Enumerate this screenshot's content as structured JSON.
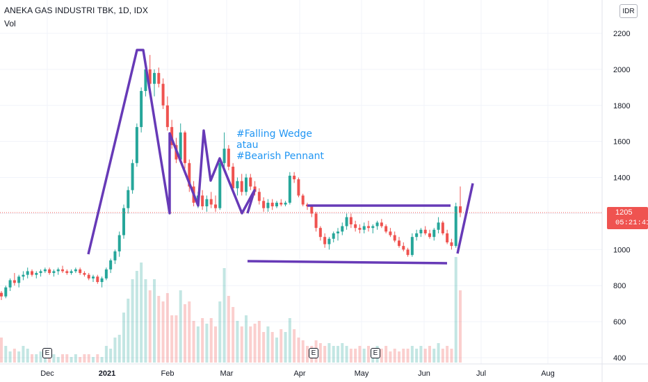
{
  "header": {
    "title": "ANEKA GAS INDUSTRI TBK, 1D, IDX",
    "indicator": "Vol"
  },
  "currency_button": "IDR",
  "price_tag": {
    "price": "1205",
    "countdown": "05:21:41"
  },
  "annotation": {
    "lines": [
      "#Falling Wedge",
      "atau",
      "#Bearish Pennant"
    ]
  },
  "event_markers": [
    "E",
    "E",
    "E"
  ],
  "colors": {
    "up": "#26a69a",
    "down": "#ef5350",
    "drawing": "#673ab7",
    "annotation": "#2196f3",
    "price_line": "#ef5350"
  },
  "chart_data": {
    "type": "candlestick",
    "symbol": "ANEKA GAS INDUSTRI TBK",
    "interval": "1D",
    "exchange": "IDX",
    "y_ticks": [
      "2200",
      "2000",
      "1800",
      "1600",
      "1400",
      "1200",
      "1000",
      "800",
      "600",
      "400"
    ],
    "x_ticks": [
      "Dec",
      "2021",
      "Feb",
      "Mar",
      "Apr",
      "May",
      "Jun",
      "Jul",
      "Aug"
    ],
    "ylim": [
      370,
      2240
    ],
    "last_price": 1205,
    "ohlc": [
      [
        760,
        770,
        720,
        740
      ],
      [
        740,
        800,
        730,
        790
      ],
      [
        790,
        840,
        770,
        830
      ],
      [
        830,
        870,
        800,
        815
      ],
      [
        815,
        860,
        790,
        850
      ],
      [
        850,
        880,
        830,
        860
      ],
      [
        860,
        900,
        840,
        880
      ],
      [
        880,
        890,
        850,
        860
      ],
      [
        860,
        880,
        840,
        870
      ],
      [
        870,
        890,
        850,
        880
      ],
      [
        880,
        900,
        870,
        890
      ],
      [
        890,
        900,
        860,
        870
      ],
      [
        870,
        890,
        850,
        880
      ],
      [
        880,
        900,
        860,
        890
      ],
      [
        890,
        910,
        870,
        880
      ],
      [
        880,
        890,
        860,
        870
      ],
      [
        870,
        890,
        860,
        880
      ],
      [
        880,
        900,
        870,
        890
      ],
      [
        890,
        900,
        860,
        870
      ],
      [
        870,
        880,
        850,
        860
      ],
      [
        860,
        870,
        830,
        840
      ],
      [
        840,
        860,
        820,
        850
      ],
      [
        850,
        860,
        810,
        820
      ],
      [
        820,
        850,
        790,
        840
      ],
      [
        840,
        900,
        830,
        890
      ],
      [
        890,
        950,
        870,
        940
      ],
      [
        940,
        1000,
        920,
        990
      ],
      [
        990,
        1100,
        960,
        1080
      ],
      [
        1080,
        1250,
        1060,
        1230
      ],
      [
        1230,
        1350,
        1200,
        1330
      ],
      [
        1330,
        1500,
        1310,
        1480
      ],
      [
        1480,
        1700,
        1460,
        1680
      ],
      [
        1680,
        1900,
        1650,
        1880
      ],
      [
        1880,
        2050,
        1850,
        2000
      ],
      [
        2000,
        2080,
        1900,
        1920
      ],
      [
        1920,
        2000,
        1850,
        1980
      ],
      [
        1980,
        2010,
        1900,
        1920
      ],
      [
        1920,
        1950,
        1780,
        1800
      ],
      [
        1800,
        1850,
        1660,
        1680
      ],
      [
        1680,
        1720,
        1560,
        1580
      ],
      [
        1580,
        1620,
        1480,
        1500
      ],
      [
        1500,
        1700,
        1480,
        1650
      ],
      [
        1650,
        1660,
        1450,
        1480
      ],
      [
        1480,
        1500,
        1320,
        1350
      ],
      [
        1350,
        1380,
        1240,
        1260
      ],
      [
        1260,
        1320,
        1230,
        1300
      ],
      [
        1300,
        1330,
        1220,
        1240
      ],
      [
        1240,
        1300,
        1210,
        1280
      ],
      [
        1280,
        1320,
        1230,
        1250
      ],
      [
        1250,
        1300,
        1210,
        1230
      ],
      [
        1230,
        1500,
        1220,
        1480
      ],
      [
        1480,
        1650,
        1450,
        1560
      ],
      [
        1560,
        1580,
        1440,
        1460
      ],
      [
        1460,
        1480,
        1320,
        1340
      ],
      [
        1340,
        1400,
        1300,
        1380
      ],
      [
        1380,
        1420,
        1300,
        1320
      ],
      [
        1320,
        1420,
        1300,
        1400
      ],
      [
        1400,
        1420,
        1330,
        1350
      ],
      [
        1350,
        1380,
        1300,
        1320
      ],
      [
        1320,
        1340,
        1250,
        1270
      ],
      [
        1270,
        1290,
        1210,
        1230
      ],
      [
        1230,
        1280,
        1210,
        1260
      ],
      [
        1260,
        1280,
        1220,
        1240
      ],
      [
        1240,
        1270,
        1230,
        1260
      ],
      [
        1260,
        1280,
        1240,
        1250
      ],
      [
        1250,
        1270,
        1240,
        1260
      ],
      [
        1260,
        1430,
        1250,
        1410
      ],
      [
        1410,
        1430,
        1370,
        1390
      ],
      [
        1390,
        1400,
        1290,
        1300
      ],
      [
        1300,
        1310,
        1240,
        1250
      ],
      [
        1250,
        1260,
        1220,
        1240
      ],
      [
        1240,
        1250,
        1180,
        1200
      ],
      [
        1200,
        1210,
        1100,
        1120
      ],
      [
        1120,
        1130,
        1050,
        1070
      ],
      [
        1070,
        1090,
        1010,
        1030
      ],
      [
        1030,
        1070,
        1000,
        1060
      ],
      [
        1060,
        1100,
        1040,
        1090
      ],
      [
        1090,
        1120,
        1050,
        1100
      ],
      [
        1100,
        1150,
        1080,
        1130
      ],
      [
        1130,
        1200,
        1110,
        1180
      ],
      [
        1180,
        1200,
        1120,
        1140
      ],
      [
        1140,
        1160,
        1100,
        1120
      ],
      [
        1120,
        1140,
        1090,
        1110
      ],
      [
        1110,
        1150,
        1090,
        1130
      ],
      [
        1130,
        1160,
        1100,
        1120
      ],
      [
        1120,
        1140,
        1090,
        1130
      ],
      [
        1130,
        1160,
        1110,
        1150
      ],
      [
        1150,
        1170,
        1120,
        1130
      ],
      [
        1130,
        1140,
        1090,
        1100
      ],
      [
        1100,
        1120,
        1070,
        1080
      ],
      [
        1080,
        1100,
        1040,
        1050
      ],
      [
        1050,
        1070,
        1010,
        1020
      ],
      [
        1020,
        1040,
        990,
        1000
      ],
      [
        1000,
        1010,
        960,
        970
      ],
      [
        970,
        1090,
        960,
        1070
      ],
      [
        1070,
        1110,
        1050,
        1090
      ],
      [
        1090,
        1120,
        1070,
        1110
      ],
      [
        1110,
        1130,
        1080,
        1090
      ],
      [
        1090,
        1110,
        1060,
        1070
      ],
      [
        1070,
        1120,
        1050,
        1110
      ],
      [
        1110,
        1180,
        1090,
        1150
      ],
      [
        1150,
        1160,
        1080,
        1090
      ],
      [
        1090,
        1110,
        1030,
        1040
      ],
      [
        1040,
        1060,
        1000,
        1020
      ],
      [
        1020,
        1260,
        1010,
        1240
      ],
      [
        1240,
        1350,
        1180,
        1205
      ]
    ],
    "volume": [
      90,
      60,
      40,
      50,
      40,
      60,
      50,
      30,
      30,
      40,
      30,
      30,
      30,
      20,
      30,
      30,
      20,
      30,
      20,
      30,
      30,
      20,
      30,
      20,
      60,
      50,
      90,
      100,
      180,
      230,
      300,
      330,
      360,
      300,
      260,
      300,
      240,
      220,
      250,
      170,
      170,
      260,
      210,
      220,
      150,
      130,
      160,
      140,
      160,
      130,
      220,
      340,
      240,
      200,
      150,
      130,
      170,
      130,
      140,
      150,
      110,
      130,
      110,
      90,
      120,
      110,
      160,
      120,
      90,
      80,
      60,
      60,
      80,
      70,
      60,
      70,
      60,
      60,
      70,
      60,
      50,
      50,
      60,
      50,
      60,
      50,
      60,
      50,
      60,
      40,
      50,
      40,
      50,
      50,
      60,
      50,
      60,
      50,
      60,
      50,
      70,
      50,
      60,
      50,
      380,
      260
    ]
  }
}
